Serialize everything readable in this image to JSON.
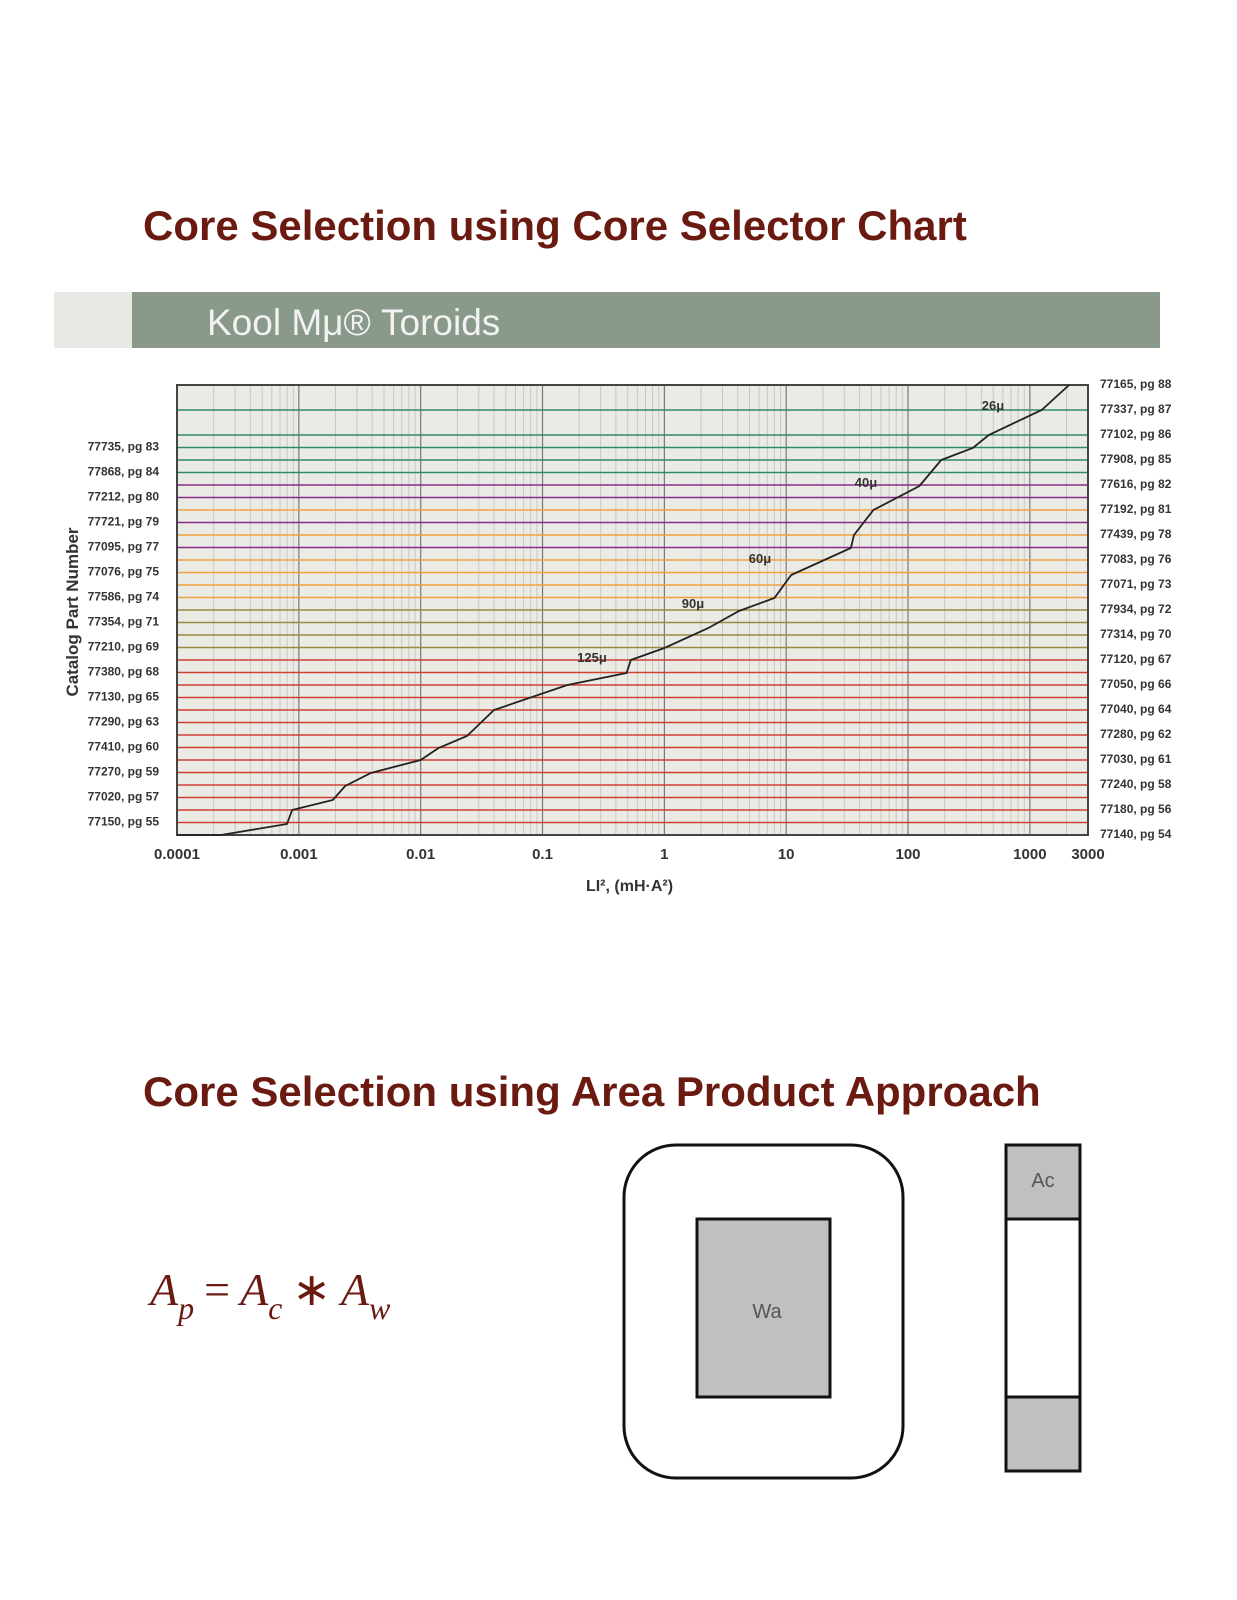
{
  "header": {
    "title": "Core Selection using Core Selector Chart"
  },
  "chart_data": {
    "type": "line",
    "banner": "Kool Mμ® Toroids",
    "x_label": "LI², (mH·A²)",
    "y_label": "Catalog Part Number",
    "xscale": "log",
    "xlim": [
      0.0001,
      3000
    ],
    "xticks": [
      0.0001,
      0.001,
      0.01,
      0.1,
      1,
      10,
      100,
      1000,
      3000
    ],
    "grid": true,
    "color": "#222222",
    "x": [
      0.0001,
      0.00023,
      0.0008,
      0.00088,
      0.0019,
      0.0024,
      0.0039,
      0.01,
      0.014,
      0.024,
      0.04,
      0.16,
      0.49,
      0.53,
      1,
      2.3,
      4.1,
      8,
      11,
      34,
      36,
      52,
      124,
      187,
      340,
      460,
      1250,
      2100
    ],
    "values": [
      0,
      0,
      0.44,
      1,
      1.4,
      1.96,
      2.48,
      3,
      3.48,
      3.96,
      5,
      6,
      6.48,
      7,
      7.48,
      8.28,
      8.96,
      9.48,
      10.4,
      11.48,
      12,
      13,
      13.96,
      15,
      15.48,
      16,
      17,
      18
    ],
    "annotations": [
      "26μ",
      "40μ",
      "60μ",
      "90μ",
      "125μ"
    ],
    "left_rows": [
      {
        "label": "77735, pg 83",
        "color": "#2e8b6a"
      },
      {
        "label": "77868, pg 84",
        "color": "#2e8b6a"
      },
      {
        "label": "77212, pg 80",
        "color": "#8a2a8a"
      },
      {
        "label": "77721, pg 79",
        "color": "#8a2a8a"
      },
      {
        "label": "77095, pg 77",
        "color": "#8a2a8a"
      },
      {
        "label": "77076, pg 75",
        "color": "#f0a040"
      },
      {
        "label": "77586, pg 74",
        "color": "#f0a040"
      },
      {
        "label": "77354, pg 71",
        "color": "#9a8a40"
      },
      {
        "label": "77210, pg 69",
        "color": "#9a8a40"
      },
      {
        "label": "77380, pg 68",
        "color": "#d04030"
      },
      {
        "label": "77130, pg 65",
        "color": "#d04030"
      },
      {
        "label": "77290, pg 63",
        "color": "#d04030"
      },
      {
        "label": "77410, pg 60",
        "color": "#d04030"
      },
      {
        "label": "77270, pg 59",
        "color": "#d04030"
      },
      {
        "label": "77020, pg 57",
        "color": "#d04030"
      },
      {
        "label": "77150, pg 55",
        "color": "#d04030"
      }
    ],
    "right_rows": [
      {
        "label": "77165, pg 88",
        "color": "#2e8b6a"
      },
      {
        "label": "77337, pg 87",
        "color": "#2e8b6a"
      },
      {
        "label": "77102, pg 86",
        "color": "#2e8b6a"
      },
      {
        "label": "77908, pg 85",
        "color": "#2e8b6a"
      },
      {
        "label": "77616, pg 82",
        "color": "#8a2a8a"
      },
      {
        "label": "77192, pg 81",
        "color": "#f0a040"
      },
      {
        "label": "77439, pg 78",
        "color": "#f0a040"
      },
      {
        "label": "77083, pg 76",
        "color": "#f0a040"
      },
      {
        "label": "77071, pg 73",
        "color": "#f0a040"
      },
      {
        "label": "77934, pg 72",
        "color": "#9a8a40"
      },
      {
        "label": "77314, pg 70",
        "color": "#9a8a40"
      },
      {
        "label": "77120, pg 67",
        "color": "#d04030"
      },
      {
        "label": "77050, pg 66",
        "color": "#d04030"
      },
      {
        "label": "77040, pg 64",
        "color": "#d04030"
      },
      {
        "label": "77280, pg 62",
        "color": "#d04030"
      },
      {
        "label": "77030, pg 61",
        "color": "#d04030"
      },
      {
        "label": "77240, pg 58",
        "color": "#d04030"
      },
      {
        "label": "77180, pg 56",
        "color": "#d04030"
      },
      {
        "label": "77140, pg 54",
        "color": "#d04030"
      }
    ]
  },
  "section2": {
    "title": "Core Selection using Area Product Approach",
    "formula": {
      "lhs": {
        "base": "A",
        "sub": "p"
      },
      "eq": "=",
      "ac": {
        "base": "A",
        "sub": "c"
      },
      "op": "∗",
      "aw": {
        "base": "A",
        "sub": "w"
      }
    },
    "diagram": {
      "window_label": "Wa",
      "core_label": "Ac"
    }
  }
}
